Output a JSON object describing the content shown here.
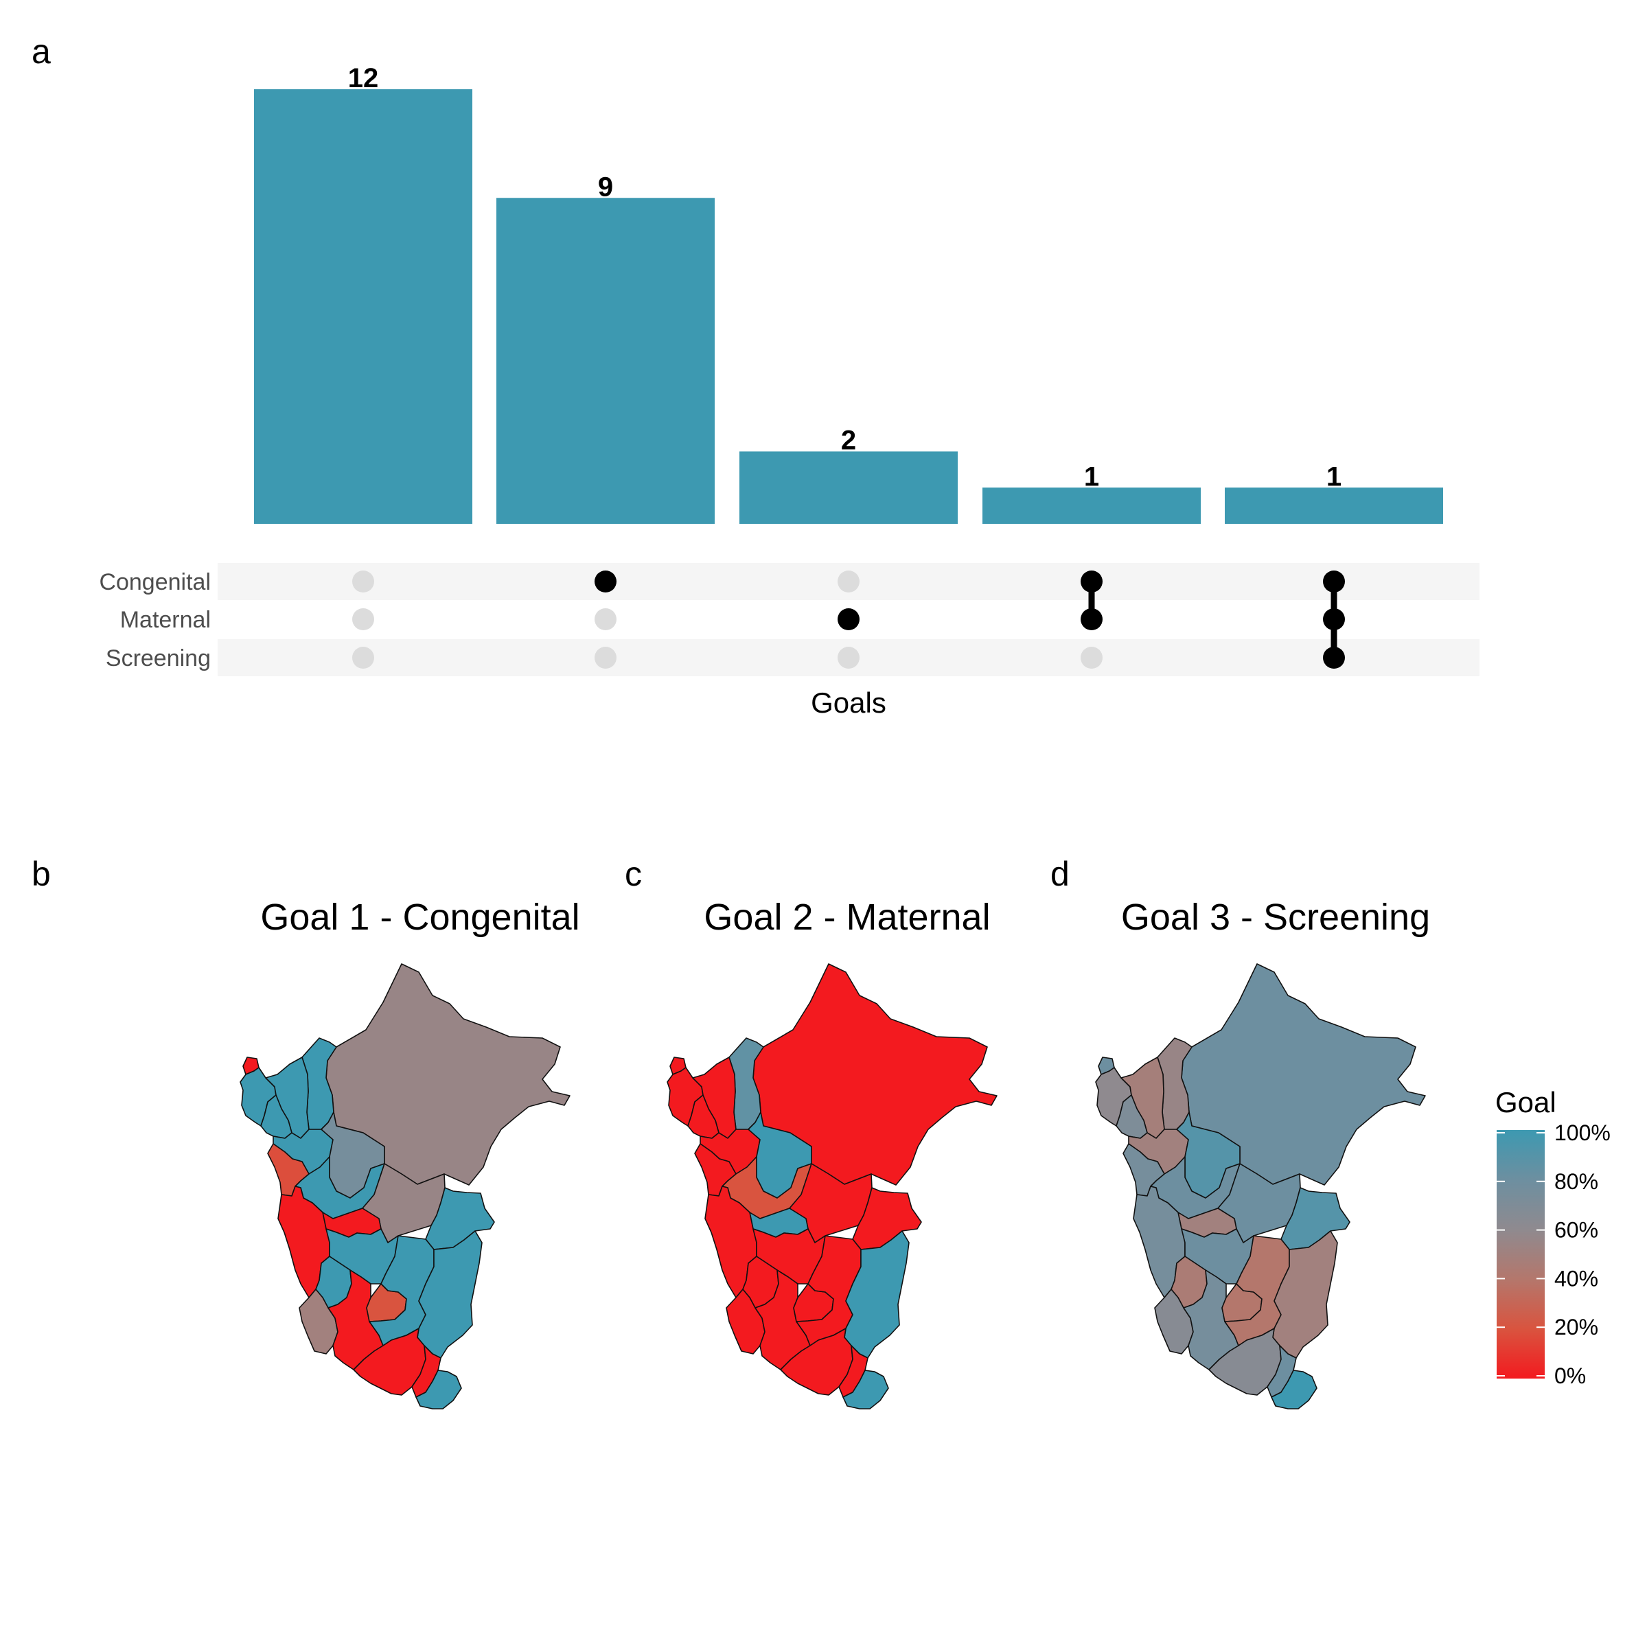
{
  "panels": {
    "a": "a",
    "b": "b",
    "c": "c",
    "d": "d"
  },
  "colors": {
    "bar": "#3d99b1",
    "dot_active": "#000000",
    "dot_inactive": "#dcdcdc",
    "stripe": "#f5f5f5",
    "scale_low": "#f31a1f",
    "scale_high": "#3d99b1"
  },
  "chart_data": [
    {
      "type": "bar",
      "subtype": "upset",
      "xlabel": "Goals",
      "sets": [
        "Congenital",
        "Maternal",
        "Screening"
      ],
      "intersections": [
        {
          "members": [],
          "value": 12
        },
        {
          "members": [
            "Congenital"
          ],
          "value": 9
        },
        {
          "members": [
            "Maternal"
          ],
          "value": 2
        },
        {
          "members": [
            "Congenital",
            "Maternal"
          ],
          "value": 1
        },
        {
          "members": [
            "Congenital",
            "Maternal",
            "Screening"
          ],
          "value": 1
        }
      ],
      "ylim": [
        0,
        12
      ]
    },
    {
      "type": "heatmap",
      "subtype": "choropleth",
      "title": "Goal 1 - Congenital",
      "values_pct": {
        "loreto": 55,
        "amazonas": 100,
        "cajamarca": 100,
        "piura": 100,
        "tumbes": 0,
        "lambayeque": 100,
        "la_libertad": 100,
        "san_martin": 75,
        "ancash": 18,
        "huanuco": 100,
        "ucayali": 55,
        "pasco": 0,
        "lima": 0,
        "junin": 100,
        "madre_de_dios": 100,
        "huancavelica": 100,
        "cusco": 100,
        "ica": 50,
        "ayacucho": 0,
        "apurimac": 20,
        "arequipa": 0,
        "puno": 100,
        "moquegua": 0,
        "tacna": 100
      }
    },
    {
      "type": "heatmap",
      "subtype": "choropleth",
      "title": "Goal 2 - Maternal",
      "values_pct": {
        "loreto": 0,
        "amazonas": 85,
        "cajamarca": 0,
        "piura": 0,
        "tumbes": 0,
        "lambayeque": 0,
        "la_libertad": 0,
        "san_martin": 100,
        "ancash": 0,
        "huanuco": 20,
        "ucayali": 0,
        "pasco": 100,
        "lima": 0,
        "junin": 0,
        "madre_de_dios": 0,
        "huancavelica": 0,
        "cusco": 0,
        "ica": 0,
        "ayacucho": 0,
        "apurimac": 0,
        "arequipa": 0,
        "puno": 100,
        "moquegua": 0,
        "tacna": 100
      }
    },
    {
      "type": "heatmap",
      "subtype": "choropleth",
      "title": "Goal 3 - Screening",
      "values_pct": {
        "loreto": 80,
        "amazonas": 55,
        "cajamarca": 48,
        "piura": 60,
        "tumbes": 80,
        "lambayeque": 70,
        "la_libertad": 50,
        "san_martin": 90,
        "ancash": 75,
        "huanuco": 80,
        "ucayali": 80,
        "pasco": 50,
        "lima": 75,
        "junin": 80,
        "madre_de_dios": 90,
        "huancavelica": 45,
        "cusco": 40,
        "ica": 65,
        "ayacucho": 75,
        "apurimac": 40,
        "arequipa": 65,
        "puno": 50,
        "moquegua": 80,
        "tacna": 100
      }
    }
  ],
  "legend": {
    "title": "Goal",
    "ticks": [
      "100%",
      "80%",
      "60%",
      "40%",
      "20%",
      "0%"
    ]
  }
}
